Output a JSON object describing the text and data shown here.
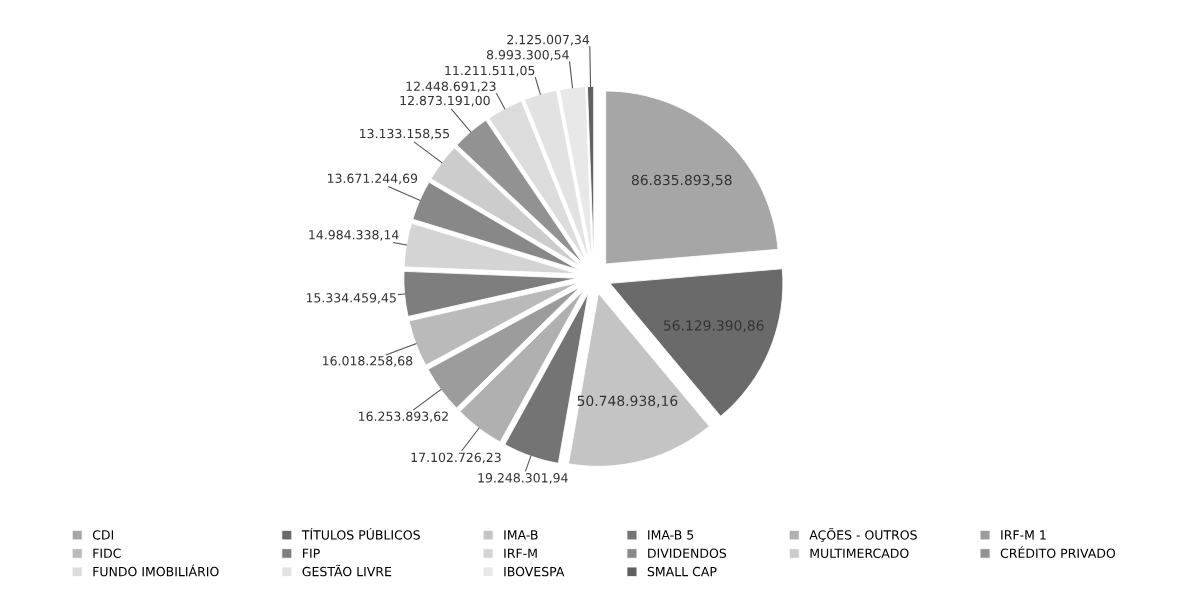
{
  "chart_data": {
    "type": "pie",
    "categories": [
      "CDI",
      "TÍTULOS PÚBLICOS",
      "IMA-B",
      "IMA-B 5",
      "AÇÕES - OUTROS",
      "IRF-M 1",
      "FIDC",
      "FIP",
      "IRF-M",
      "DIVIDENDOS",
      "MULTIMERCADO",
      "CRÉDITO PRIVADO",
      "FUNDO IMOBILIÁRIO",
      "GESTÃO LIVRE",
      "IBOVESPA",
      "SMALL CAP"
    ],
    "values": [
      86835893.58,
      56129390.86,
      50748938.16,
      19248301.94,
      17102726.23,
      16253893.62,
      16018258.68,
      15334459.45,
      14984338.14,
      13671244.69,
      13133158.55,
      12873191.0,
      12448691.23,
      11211511.05,
      8993300.54,
      2125007.34
    ],
    "value_labels": [
      "86.835.893,58",
      "56.129.390,86",
      "50.748.938,16",
      "19.248.301,94",
      "17.102.726,23",
      "16.253.893,62",
      "16.018.258,68",
      "15.334.459,45",
      "14.984.338,14",
      "13.671.244,69",
      "13.133.158,55",
      "12.873.191,00",
      "12.448.691,23",
      "11.211.511,05",
      "8.993.300,54",
      "2.125.007,34"
    ],
    "colors": [
      "#a6a6a6",
      "#6a6a6a",
      "#c4c4c4",
      "#747474",
      "#b0b0b0",
      "#9c9c9c",
      "#bababa",
      "#7e7e7e",
      "#d4d4d4",
      "#888888",
      "#cccccc",
      "#929292",
      "#dcdcdc",
      "#e2e2e2",
      "#e8e8e8",
      "#606060"
    ],
    "legend": "bottom"
  }
}
